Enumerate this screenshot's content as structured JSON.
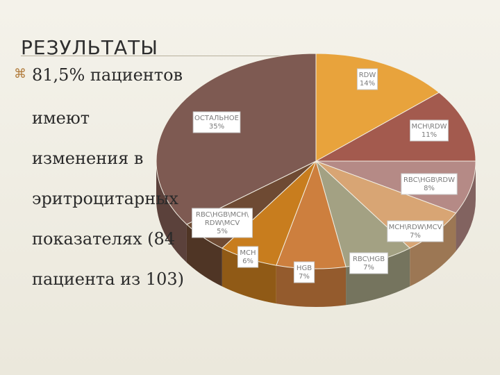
{
  "slide": {
    "title": "РЕЗУЛЬТАТЫ",
    "bullet_lines": [
      "81,5% пациентов",
      "имеют",
      "изменения в",
      "эритроцитарных",
      "показателях (84",
      "пациента из 103)"
    ]
  },
  "chart_data": {
    "type": "pie",
    "title": "",
    "slices": [
      {
        "label": "RDW",
        "value_label": "14%",
        "value": 14,
        "color": "#e8a33c"
      },
      {
        "label": "MCH\\RDW",
        "value_label": "11%",
        "value": 11,
        "color": "#a35a4e"
      },
      {
        "label": "RBC\\HGB\\RDW",
        "value_label": "8%",
        "value": 8,
        "color": "#b58a86"
      },
      {
        "label": "MCH\\RDW\\MCV",
        "value_label": "7%",
        "value": 7,
        "color": "#d8a574"
      },
      {
        "label": "RBC\\HGB",
        "value_label": "7%",
        "value": 7,
        "color": "#a3a183"
      },
      {
        "label": "HGB",
        "value_label": "7%",
        "value": 7,
        "color": "#cd7f3e"
      },
      {
        "label": "MCH",
        "value_label": "6%",
        "value": 6,
        "color": "#c87d1e"
      },
      {
        "label": "RBC\\HGB\\MCH\\ RDW\\MCV",
        "value_label": "5%",
        "value": 5,
        "color": "#6e4a33"
      },
      {
        "label": "ОСТАЛЬНОЕ",
        "value_label": "35%",
        "value": 35,
        "color": "#7e5a52"
      }
    ]
  }
}
